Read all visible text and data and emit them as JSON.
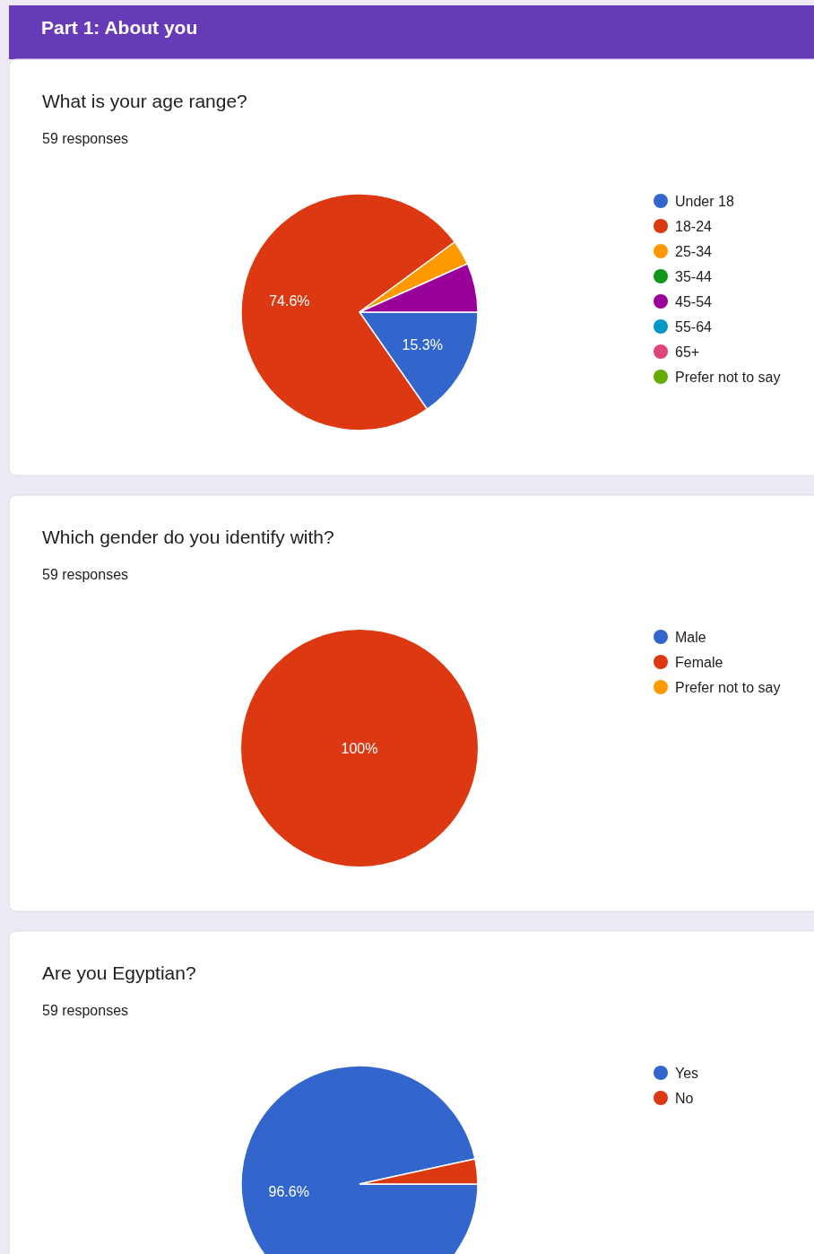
{
  "chart_data": [
    {
      "type": "pie",
      "title": "What is your age range?",
      "subtitle": "59 responses",
      "annotations": [
        "Part 1: About you"
      ],
      "legend": "top right",
      "categories": [
        "Under 18",
        "18-24",
        "25-34",
        "35-44",
        "45-54",
        "55-64",
        "65+",
        "Prefer not to say"
      ],
      "values": [
        15.3,
        74.6,
        3.4,
        0,
        6.7,
        0,
        0,
        0
      ],
      "colors": [
        "#3366cc",
        "#dc3912",
        "#ff9900",
        "#109618",
        "#990099",
        "#0099c6",
        "#dd4477",
        "#66aa00"
      ],
      "value_labels": [
        "15.3%",
        "74.6%",
        null,
        null,
        null,
        null,
        null,
        null
      ]
    },
    {
      "type": "pie",
      "title": "Which gender do you identify with?",
      "subtitle": "59 responses",
      "legend": "top right",
      "categories": [
        "Male",
        "Female",
        "Prefer not to say"
      ],
      "values": [
        0,
        100,
        0
      ],
      "colors": [
        "#3366cc",
        "#dc3912",
        "#ff9900"
      ],
      "value_labels": [
        null,
        "100%",
        null
      ]
    },
    {
      "type": "pie",
      "title": "Are you Egyptian?",
      "subtitle": "59 responses",
      "legend": "top right",
      "categories": [
        "Yes",
        "No"
      ],
      "values": [
        96.6,
        3.4
      ],
      "colors": [
        "#3366cc",
        "#dc3912"
      ],
      "value_labels": [
        "96.6%",
        null
      ]
    }
  ]
}
